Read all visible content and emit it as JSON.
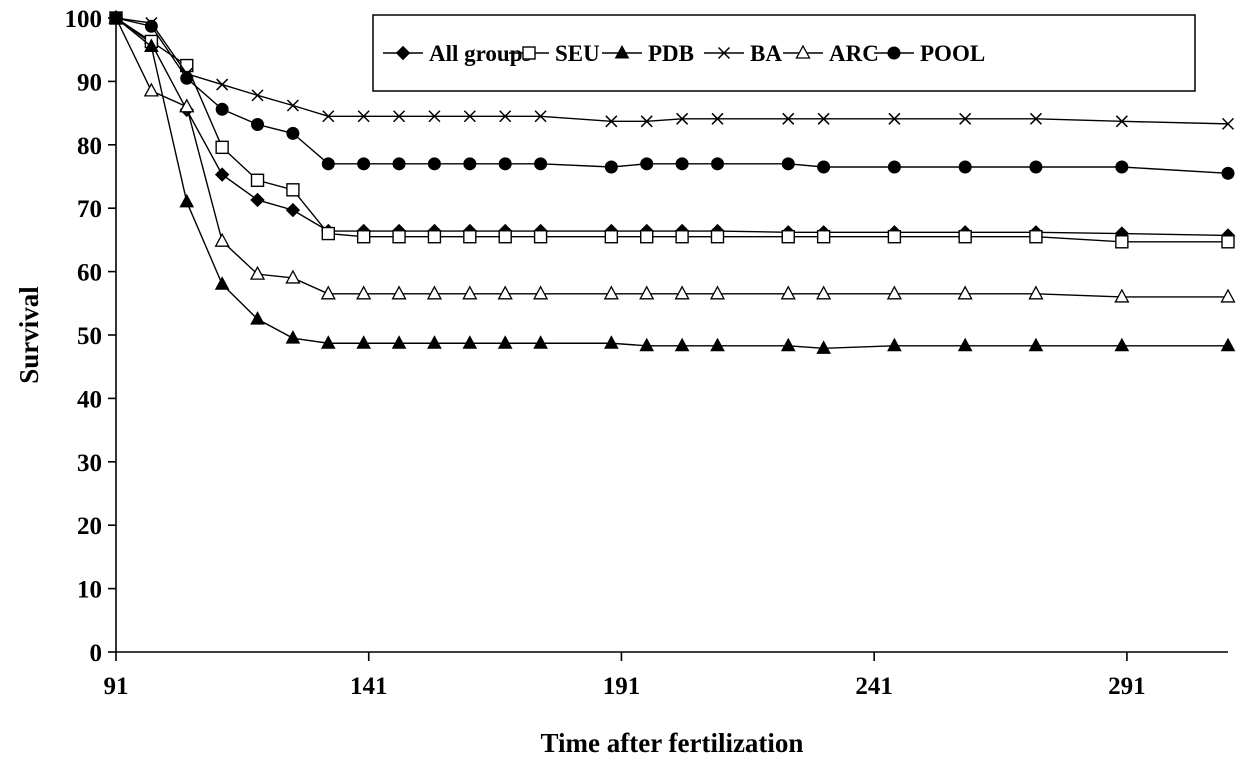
{
  "chart_data": {
    "type": "line",
    "xlabel": "Time after fertilization",
    "ylabel": "Survival",
    "xlim": [
      91,
      311
    ],
    "ylim": [
      0,
      100
    ],
    "x_ticks": [
      91,
      141,
      191,
      241,
      291
    ],
    "y_ticks": [
      0,
      10,
      20,
      30,
      40,
      50,
      60,
      70,
      80,
      90,
      100
    ],
    "grid": false,
    "legend_position": "top",
    "x": [
      91,
      98,
      105,
      112,
      119,
      126,
      133,
      140,
      147,
      154,
      161,
      168,
      175,
      189,
      196,
      203,
      210,
      224,
      231,
      245,
      259,
      273,
      290,
      311
    ],
    "series": [
      {
        "name": "All groups",
        "marker": "diamond-filled",
        "values": [
          100,
          96,
          85.5,
          75.3,
          71.3,
          69.7,
          66.4,
          66.4,
          66.4,
          66.4,
          66.4,
          66.4,
          66.4,
          66.4,
          66.4,
          66.4,
          66.4,
          66.2,
          66.2,
          66.2,
          66.2,
          66.2,
          66,
          65.7
        ]
      },
      {
        "name": "SEU",
        "marker": "square-open",
        "values": [
          100,
          96.3,
          92.5,
          79.6,
          74.4,
          72.9,
          66,
          65.5,
          65.5,
          65.5,
          65.5,
          65.5,
          65.5,
          65.5,
          65.5,
          65.5,
          65.5,
          65.5,
          65.5,
          65.5,
          65.5,
          65.5,
          64.7,
          64.7
        ]
      },
      {
        "name": "PDB",
        "marker": "triangle-filled",
        "values": [
          100,
          95.5,
          71,
          58,
          52.5,
          49.5,
          48.7,
          48.7,
          48.7,
          48.7,
          48.7,
          48.7,
          48.7,
          48.7,
          48.3,
          48.3,
          48.3,
          48.3,
          47.9,
          48.3,
          48.3,
          48.3,
          48.3,
          48.3
        ]
      },
      {
        "name": "BA",
        "marker": "x",
        "values": [
          100,
          99.2,
          91.2,
          89.5,
          87.8,
          86.2,
          84.5,
          84.5,
          84.5,
          84.5,
          84.5,
          84.5,
          84.5,
          83.7,
          83.7,
          84.1,
          84.1,
          84.1,
          84.1,
          84.1,
          84.1,
          84.1,
          83.7,
          83.3
        ]
      },
      {
        "name": "ARC",
        "marker": "triangle-open",
        "values": [
          100,
          88.5,
          86,
          64.8,
          59.6,
          59,
          56.5,
          56.5,
          56.5,
          56.5,
          56.5,
          56.5,
          56.5,
          56.5,
          56.5,
          56.5,
          56.5,
          56.5,
          56.5,
          56.5,
          56.5,
          56.5,
          56,
          56
        ]
      },
      {
        "name": "POOL",
        "marker": "circle-filled",
        "values": [
          100,
          98.7,
          90.5,
          85.6,
          83.2,
          81.8,
          77,
          77,
          77,
          77,
          77,
          77,
          77,
          76.5,
          77,
          77,
          77,
          77,
          76.5,
          76.5,
          76.5,
          76.5,
          76.5,
          75.5
        ]
      }
    ]
  }
}
